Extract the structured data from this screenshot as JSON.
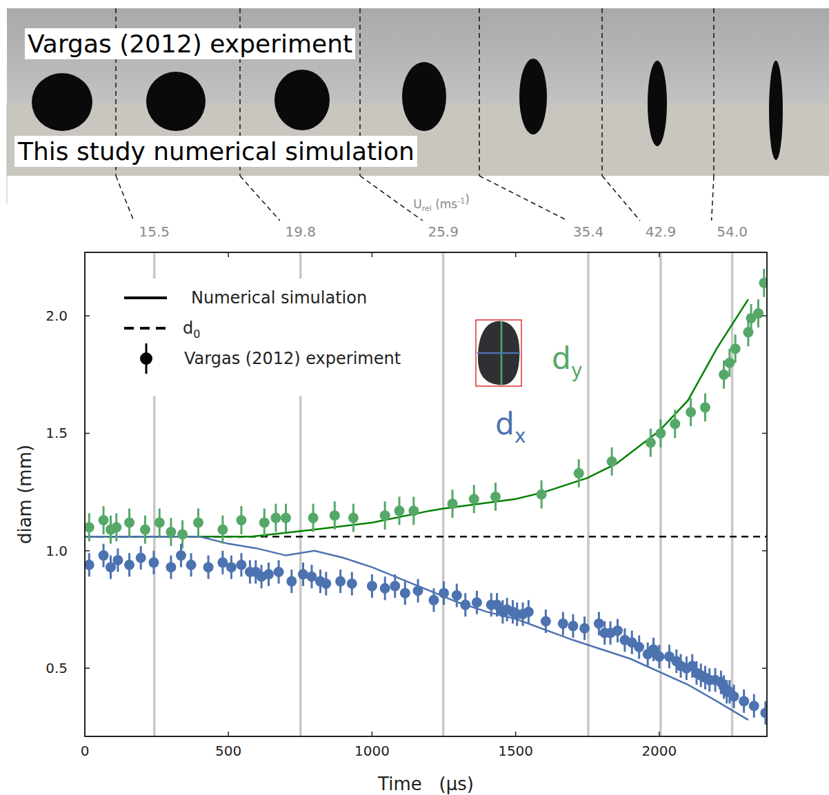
{
  "photo_strip": {
    "top_label": "Vargas (2012) experiment",
    "bottom_label": "This study numerical simulation"
  },
  "chart_data": {
    "type": "scatter",
    "xlabel": "Time   (µs)",
    "ylabel": "diam (mm)",
    "top_axis_label": [
      {
        "text": "U"
      },
      {
        "sub": "rel"
      },
      {
        "text": "(ms"
      },
      {
        "sup": "-1"
      },
      {
        "text": ")"
      }
    ],
    "xlim": [
      0,
      2375
    ],
    "ylim": [
      0.21,
      2.27
    ],
    "xticks": [
      0,
      500,
      1000,
      1500,
      2000
    ],
    "yticks": [
      0.5,
      {
        "value": 1,
        "label": "1.0"
      },
      1.5,
      {
        "value": 2,
        "label": "2.0"
      }
    ],
    "velocity_markers": {
      "x": [
        242,
        751,
        1248,
        1753,
        2005,
        2254
      ],
      "values": [
        15.5,
        19.8,
        25.9,
        35.4,
        42.9,
        54
      ],
      "value_labels": [
        "15.5",
        "19.8",
        "25.9",
        "35.4",
        "42.9",
        "54.0"
      ]
    },
    "reference_line": {
      "value": 1.06,
      "line_style": "dashed",
      "color": "#000000"
    },
    "series": [
      {
        "type": "line",
        "color": "#008000",
        "x": [
          0,
          580,
          650,
          800,
          1000,
          1200,
          1250,
          1500,
          1600,
          1750,
          1850,
          2000,
          2100,
          2200,
          2310
        ],
        "values": [
          1.06,
          1.06,
          1.07,
          1.09,
          1.12,
          1.17,
          1.18,
          1.22,
          1.25,
          1.31,
          1.37,
          1.51,
          1.64,
          1.86,
          2.07
        ]
      },
      {
        "type": "line",
        "color": "#4c72b0",
        "x": [
          0,
          400,
          500,
          600,
          700,
          800,
          900,
          1000,
          1100,
          1200,
          1300,
          1400,
          1500,
          1700,
          1900,
          2100,
          2200,
          2310
        ],
        "values": [
          1.06,
          1.06,
          1.03,
          1.01,
          0.98,
          1.0,
          0.97,
          0.93,
          0.88,
          0.83,
          0.78,
          0.74,
          0.71,
          0.62,
          0.54,
          0.43,
          0.36,
          0.28
        ]
      },
      {
        "type": "scatter",
        "marker": "circle",
        "color": "#55a868",
        "error": 0.06,
        "x": [
          15,
          65,
          90,
          110,
          155,
          210,
          260,
          300,
          340,
          395,
          480,
          545,
          625,
          665,
          700,
          795,
          870,
          935,
          1045,
          1095,
          1145,
          1280,
          1355,
          1430,
          1590,
          1720,
          1835,
          1970,
          2005,
          2055,
          2110,
          2160,
          2225,
          2245,
          2265,
          2310,
          2320,
          2345,
          2365
        ],
        "values": [
          1.1,
          1.13,
          1.09,
          1.1,
          1.12,
          1.09,
          1.12,
          1.08,
          1.07,
          1.12,
          1.09,
          1.13,
          1.12,
          1.14,
          1.14,
          1.14,
          1.15,
          1.14,
          1.15,
          1.17,
          1.17,
          1.2,
          1.22,
          1.23,
          1.24,
          1.33,
          1.38,
          1.46,
          1.5,
          1.54,
          1.59,
          1.61,
          1.75,
          1.8,
          1.86,
          1.93,
          1.99,
          2.01,
          2.14
        ]
      },
      {
        "type": "scatter",
        "marker": "circle",
        "color": "#4c72b0",
        "error": 0.05,
        "x": [
          15,
          65,
          90,
          115,
          155,
          195,
          240,
          300,
          335,
          370,
          430,
          480,
          510,
          545,
          575,
          595,
          615,
          640,
          675,
          720,
          760,
          790,
          820,
          840,
          890,
          930,
          1000,
          1045,
          1080,
          1115,
          1160,
          1215,
          1250,
          1295,
          1325,
          1365,
          1415,
          1435,
          1455,
          1470,
          1490,
          1505,
          1525,
          1545,
          1605,
          1665,
          1700,
          1740,
          1790,
          1810,
          1830,
          1855,
          1880,
          1905,
          1930,
          1960,
          1980,
          2000,
          2035,
          2060,
          2075,
          2095,
          2115,
          2130,
          2145,
          2160,
          2175,
          2195,
          2215,
          2225,
          2235,
          2245,
          2260,
          2295,
          2330,
          2370
        ],
        "values": [
          0.94,
          0.98,
          0.93,
          0.96,
          0.94,
          0.97,
          0.95,
          0.93,
          0.98,
          0.94,
          0.93,
          0.95,
          0.93,
          0.94,
          0.91,
          0.91,
          0.89,
          0.9,
          0.91,
          0.87,
          0.9,
          0.89,
          0.87,
          0.86,
          0.87,
          0.86,
          0.85,
          0.84,
          0.85,
          0.82,
          0.83,
          0.79,
          0.82,
          0.81,
          0.77,
          0.78,
          0.77,
          0.77,
          0.74,
          0.75,
          0.74,
          0.73,
          0.73,
          0.74,
          0.7,
          0.69,
          0.68,
          0.67,
          0.69,
          0.65,
          0.65,
          0.66,
          0.62,
          0.61,
          0.59,
          0.56,
          0.58,
          0.55,
          0.55,
          0.53,
          0.51,
          0.5,
          0.51,
          0.48,
          0.47,
          0.46,
          0.45,
          0.45,
          0.44,
          0.42,
          0.4,
          0.4,
          0.38,
          0.36,
          0.34,
          0.31
        ]
      }
    ],
    "legend": "upper left",
    "legend_entries": [
      {
        "label": "Numerical simulation",
        "line_style": "solid"
      },
      {
        "label": "d",
        "sub": "0",
        "line_style": "dashed"
      },
      {
        "label": "Vargas (2012) experiment",
        "marker": "circle"
      }
    ],
    "inset_labels": [
      {
        "text": "d",
        "sub": "y",
        "color": "#55a868"
      },
      {
        "text": "d",
        "sub": "x",
        "color": "#4c72b0"
      }
    ]
  }
}
